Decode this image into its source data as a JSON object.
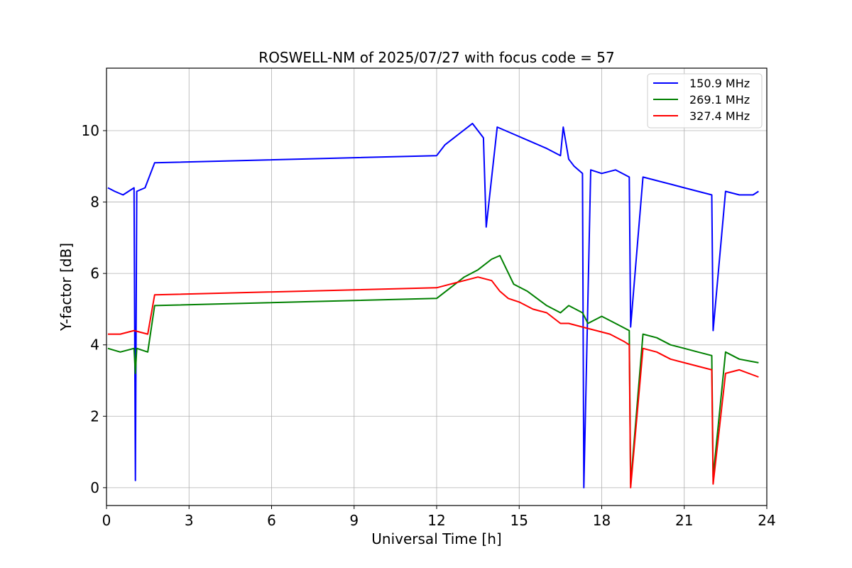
{
  "chart_data": {
    "type": "line",
    "title": "ROSWELL-NM of 2025/07/27 with focus code = 57",
    "xlabel": "Universal Time [h]",
    "ylabel": "Y-factor [dB]",
    "xlim": [
      0,
      24
    ],
    "ylim": [
      -0.5,
      11.75
    ],
    "xticks": [
      0,
      3,
      6,
      9,
      12,
      15,
      18,
      21,
      24
    ],
    "yticks": [
      0,
      2,
      4,
      6,
      8,
      10
    ],
    "grid": true,
    "legend_position": "top-right",
    "series": [
      {
        "name": "150.9 MHz",
        "color": "#0000ff",
        "x": [
          0.05,
          0.3,
          0.6,
          1.0,
          1.05,
          1.1,
          1.4,
          1.75,
          12.0,
          12.3,
          12.8,
          13.3,
          13.7,
          13.8,
          14.2,
          14.8,
          15.4,
          16.0,
          16.5,
          16.6,
          16.8,
          17.0,
          17.3,
          17.35,
          17.6,
          18.0,
          18.5,
          19.0,
          19.05,
          19.5,
          20.0,
          20.5,
          21.0,
          21.5,
          22.0,
          22.05,
          22.5,
          23.0,
          23.5,
          23.7
        ],
        "y": [
          8.4,
          8.3,
          8.2,
          8.4,
          0.2,
          8.3,
          8.4,
          9.1,
          9.3,
          9.6,
          9.9,
          10.2,
          9.8,
          7.3,
          10.1,
          9.9,
          9.7,
          9.5,
          9.3,
          10.1,
          9.2,
          9.0,
          8.8,
          0.0,
          8.9,
          8.8,
          8.9,
          8.7,
          4.5,
          8.7,
          8.6,
          8.5,
          8.4,
          8.3,
          8.2,
          4.4,
          8.3,
          8.2,
          8.2,
          8.3
        ]
      },
      {
        "name": "269.1 MHz",
        "color": "#008000",
        "x": [
          0.05,
          0.5,
          1.0,
          1.05,
          1.1,
          1.5,
          1.75,
          12.0,
          12.5,
          13.0,
          13.5,
          14.0,
          14.3,
          14.8,
          15.3,
          16.0,
          16.5,
          16.8,
          17.3,
          17.5,
          18.0,
          18.5,
          19.0,
          19.05,
          19.5,
          20.0,
          20.5,
          21.0,
          21.5,
          22.0,
          22.05,
          22.5,
          23.0,
          23.7
        ],
        "y": [
          3.9,
          3.8,
          3.9,
          3.2,
          3.9,
          3.8,
          5.1,
          5.3,
          5.6,
          5.9,
          6.1,
          6.4,
          6.5,
          5.7,
          5.5,
          5.1,
          4.9,
          5.1,
          4.9,
          4.6,
          4.8,
          4.6,
          4.4,
          0.1,
          4.3,
          4.2,
          4.0,
          3.9,
          3.8,
          3.7,
          0.3,
          3.8,
          3.6,
          3.5
        ]
      },
      {
        "name": "327.4 MHz",
        "color": "#ff0000",
        "x": [
          0.05,
          0.5,
          1.0,
          1.5,
          1.75,
          12.0,
          12.5,
          13.0,
          13.5,
          14.0,
          14.3,
          14.6,
          15.0,
          15.5,
          16.0,
          16.5,
          16.8,
          17.3,
          17.8,
          18.3,
          18.8,
          19.0,
          19.05,
          19.5,
          20.0,
          20.5,
          21.0,
          21.5,
          22.0,
          22.05,
          22.5,
          23.0,
          23.7
        ],
        "y": [
          4.3,
          4.3,
          4.4,
          4.3,
          5.4,
          5.6,
          5.7,
          5.8,
          5.9,
          5.8,
          5.5,
          5.3,
          5.2,
          5.0,
          4.9,
          4.6,
          4.6,
          4.5,
          4.4,
          4.3,
          4.1,
          4.0,
          0.0,
          3.9,
          3.8,
          3.6,
          3.5,
          3.4,
          3.3,
          0.1,
          3.2,
          3.3,
          3.1
        ]
      }
    ]
  }
}
